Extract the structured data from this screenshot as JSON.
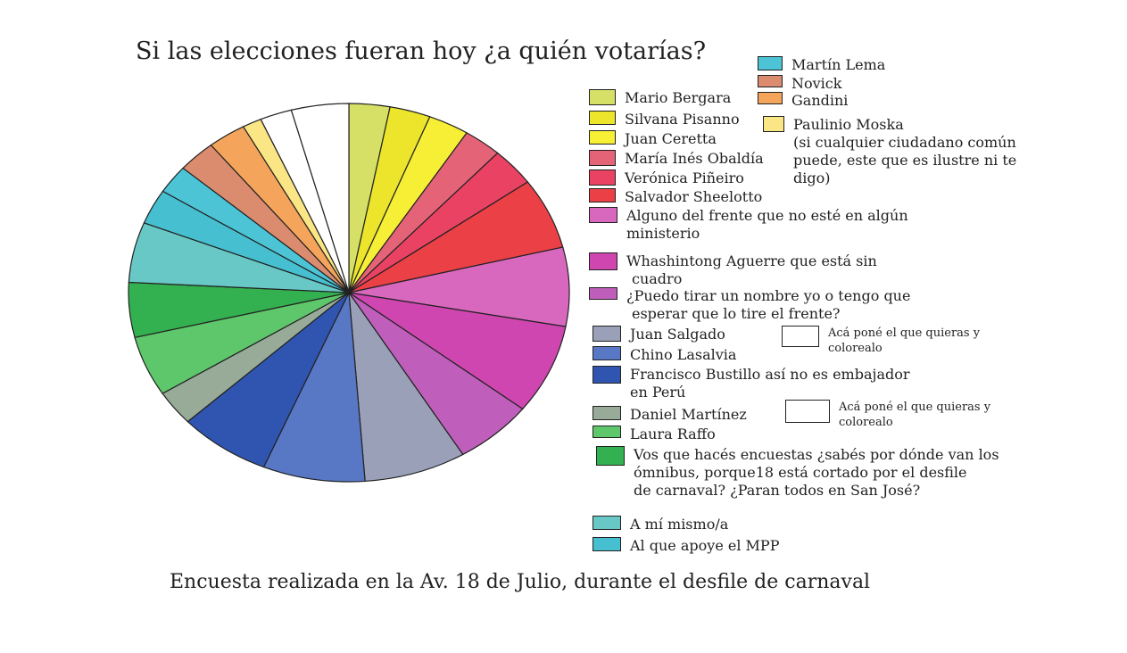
{
  "chart_data": {
    "type": "pie",
    "title": "Si las elecciones fueran hoy ¿a quién votarías?",
    "footer": "Encuesta realizada en la Av. 18 de Julio, durante el desfile de carnaval",
    "slices": [
      {
        "label": "Mario Bergara",
        "value": 3.2,
        "color": "#d6e066"
      },
      {
        "label": "Silvana Pisanno",
        "value": 3.2,
        "color": "#ece52b"
      },
      {
        "label": "Juan Ceretta",
        "value": 3.2,
        "color": "#f6ef36"
      },
      {
        "label": "María Inés Obaldía",
        "value": 3.0,
        "color": "#e56377"
      },
      {
        "label": "Verónica Piñeiro",
        "value": 3.5,
        "color": "#ea4263"
      },
      {
        "label": "Salvador Sheelotto",
        "value": 6.5,
        "color": "#ea4046"
      },
      {
        "label": "Alguno del frente que no esté en algún ministerio",
        "value": 7.2,
        "color": "#d868bd"
      },
      {
        "label": "Whashintong Aguerre que está sin cuadro",
        "value": 8.2,
        "color": "#cf46b0"
      },
      {
        "label": "¿Puedo tirar un nombre yo o tengo que esperar que lo tire el frente?",
        "value": 6.2,
        "color": "#bf5fbb"
      },
      {
        "label": "Juan Salgado",
        "value": 8.0,
        "color": "#99a0b8"
      },
      {
        "label": "Chino Lasalvia",
        "value": 8.0,
        "color": "#5878c6"
      },
      {
        "label": "Francisco Bustillo así no es embajador en Perú",
        "value": 7.2,
        "color": "#3055b0"
      },
      {
        "label": "Daniel Martínez",
        "value": 3.2,
        "color": "#98ab98"
      },
      {
        "label": "Laura Raffo",
        "value": 5.5,
        "color": "#5ec66b"
      },
      {
        "label": "Vos que hacés encuestas ¿sabés por dónde van los ómnibus, porque18 está cortado por el desfile de carnaval? ¿Paran todos en San José?",
        "value": 5.0,
        "color": "#33b150"
      },
      {
        "label": "A mí mismo/a",
        "value": 5.5,
        "color": "#67c8c6"
      },
      {
        "label": "Al que apoye el MPP",
        "value": 3.2,
        "color": "#46c0d0"
      },
      {
        "label": "Martín Lema",
        "value": 2.6,
        "color": "#4cc4d6"
      },
      {
        "label": "Novick",
        "value": 3.0,
        "color": "#dc8c6e"
      },
      {
        "label": "Gandini",
        "value": 3.0,
        "color": "#f4a55b"
      },
      {
        "label": "Paulinio Moska (si cualquier ciudadano común puede, este que es ilustre ni te digo)",
        "value": 1.5,
        "color": "#fae684"
      },
      {
        "label": "Acá poné el que quieras y colorealo",
        "value": 2.5,
        "color": "#ffffff"
      },
      {
        "label": "Acá poné el que quieras y colorealo",
        "value": 4.5,
        "color": "#ffffff"
      }
    ],
    "legend": [
      {
        "lines": [
          "Martín Lema"
        ],
        "color": "#4cc4d6"
      },
      {
        "lines": [
          "Novick"
        ],
        "color": "#dc8c6e"
      },
      {
        "lines": [
          "Gandini"
        ],
        "color": "#f4a55b"
      },
      {
        "lines": [
          "Paulinio Moska",
          "(si cualquier ciudadano común",
          "puede, este que es ilustre ni te",
          "digo)"
        ],
        "color": "#fae684"
      },
      {
        "lines": [
          "Mario Bergara"
        ],
        "color": "#d6e066"
      },
      {
        "lines": [
          "Silvana Pisanno"
        ],
        "color": "#ece52b"
      },
      {
        "lines": [
          "Juan Ceretta"
        ],
        "color": "#f6ef36"
      },
      {
        "lines": [
          "María Inés Obaldía"
        ],
        "color": "#e56377"
      },
      {
        "lines": [
          "Verónica Piñeiro"
        ],
        "color": "#ea4263"
      },
      {
        "lines": [
          "Salvador Sheelotto"
        ],
        "color": "#ea4046"
      },
      {
        "lines": [
          "Alguno del frente que no esté en algún",
          "ministerio"
        ],
        "color": "#d868bd"
      },
      {
        "lines": [
          "Whashintong Aguerre que está sin",
          "cuadro"
        ],
        "color": "#cf46b0"
      },
      {
        "lines": [
          "¿Puedo tirar un nombre yo o tengo que",
          "esperar que lo tire el frente?"
        ],
        "color": "#bf5fbb"
      },
      {
        "lines": [
          "Juan Salgado"
        ],
        "color": "#99a0b8"
      },
      {
        "lines": [
          "Chino Lasalvia"
        ],
        "color": "#5878c6"
      },
      {
        "lines": [
          "Francisco Bustillo así no es embajador",
          "en Perú"
        ],
        "color": "#3055b0"
      },
      {
        "lines": [
          "Daniel Martínez"
        ],
        "color": "#98ab98"
      },
      {
        "lines": [
          "Laura Raffo"
        ],
        "color": "#5ec66b"
      },
      {
        "lines": [
          "Vos que hacés encuestas ¿sabés por dónde van los",
          "ómnibus, porque18 está cortado por el desfile",
          "de carnaval? ¿Paran todos en San José?"
        ],
        "color": "#33b150"
      },
      {
        "lines": [
          "A mí mismo/a"
        ],
        "color": "#67c8c6"
      },
      {
        "lines": [
          "Al que apoye el MPP"
        ],
        "color": "#46c0d0"
      },
      {
        "lines": [
          "Acá poné el que quieras y",
          "colorealo"
        ],
        "color": "#ffffff"
      },
      {
        "lines": [
          "Acá poné el que quieras y",
          "colorealo"
        ],
        "color": "#ffffff"
      }
    ]
  }
}
